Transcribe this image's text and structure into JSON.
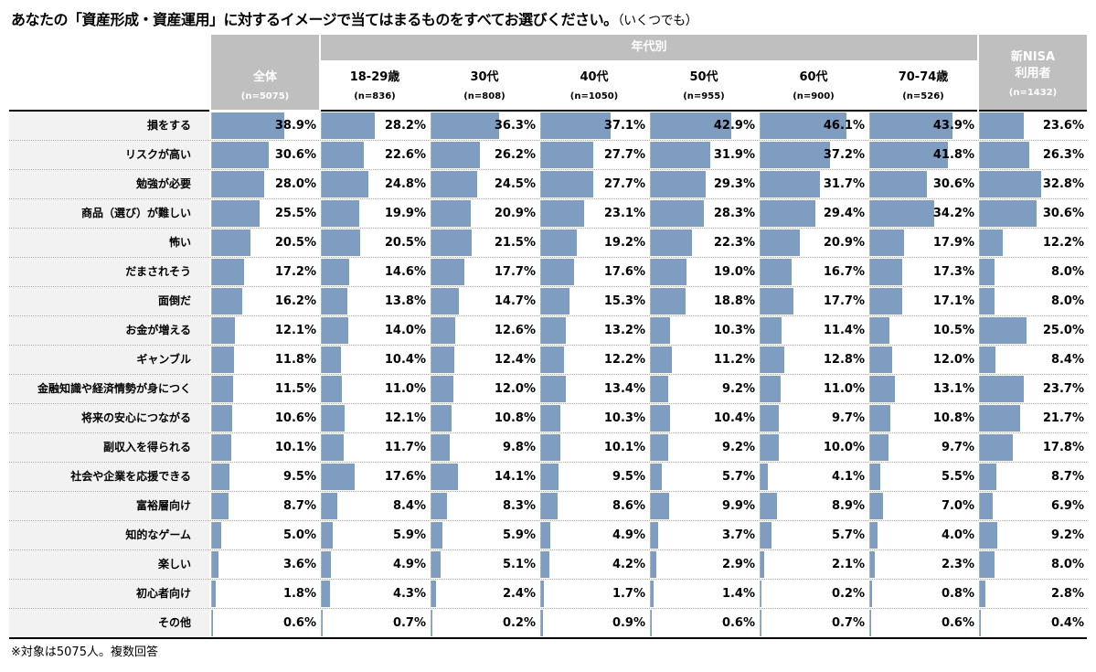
{
  "title": "あなたの「資産形成・資産運用」に対するイメージで当てはまるものをすべてお選びください。",
  "title_note": "（いくつでも）",
  "group_header": "年代別",
  "columns": [
    {
      "label": "全体",
      "n": "(n=5075)",
      "shaded": true
    },
    {
      "label": "18-29歳",
      "n": "(n=836)"
    },
    {
      "label": "30代",
      "n": "(n=808)"
    },
    {
      "label": "40代",
      "n": "(n=1050)"
    },
    {
      "label": "50代",
      "n": "(n=955)"
    },
    {
      "label": "60代",
      "n": "(n=900)"
    },
    {
      "label": "70-74歳",
      "n": "(n=526)"
    },
    {
      "label": "新NISA\n利用者",
      "n": "(n=1432)",
      "shaded": true
    }
  ],
  "colors": {
    "bar": "#7f9cc1",
    "header": "#bfbfbf",
    "label_bg": "#f2f2f2"
  },
  "chart_data": {
    "type": "table",
    "unit": "%",
    "rows": [
      {
        "label": "損をする",
        "values": [
          38.9,
          28.2,
          36.3,
          37.1,
          42.9,
          46.1,
          43.9,
          23.6
        ]
      },
      {
        "label": "リスクが高い",
        "values": [
          30.6,
          22.6,
          26.2,
          27.7,
          31.9,
          37.2,
          41.8,
          26.3
        ]
      },
      {
        "label": "勉強が必要",
        "values": [
          28.0,
          24.8,
          24.5,
          27.7,
          29.3,
          31.7,
          30.6,
          32.8
        ]
      },
      {
        "label": "商品（選び）が難しい",
        "values": [
          25.5,
          19.9,
          20.9,
          23.1,
          28.3,
          29.4,
          34.2,
          30.6
        ]
      },
      {
        "label": "怖い",
        "values": [
          20.5,
          20.5,
          21.5,
          19.2,
          22.3,
          20.9,
          17.9,
          12.2
        ]
      },
      {
        "label": "だまされそう",
        "values": [
          17.2,
          14.6,
          17.7,
          17.6,
          19.0,
          16.7,
          17.3,
          8.0
        ]
      },
      {
        "label": "面倒だ",
        "values": [
          16.2,
          13.8,
          14.7,
          15.3,
          18.8,
          17.7,
          17.1,
          8.0
        ]
      },
      {
        "label": "お金が増える",
        "values": [
          12.1,
          14.0,
          12.6,
          13.2,
          10.3,
          11.4,
          10.5,
          25.0
        ]
      },
      {
        "label": "ギャンブル",
        "values": [
          11.8,
          10.4,
          12.4,
          12.2,
          11.2,
          12.8,
          12.0,
          8.4
        ]
      },
      {
        "label": "金融知識や経済情勢が身につく",
        "values": [
          11.5,
          11.0,
          12.0,
          13.4,
          9.2,
          11.0,
          13.1,
          23.7
        ]
      },
      {
        "label": "将来の安心につながる",
        "values": [
          10.6,
          12.1,
          10.8,
          10.3,
          10.4,
          9.7,
          10.8,
          21.7
        ]
      },
      {
        "label": "副収入を得られる",
        "values": [
          10.1,
          11.7,
          9.8,
          10.1,
          9.2,
          10.0,
          9.7,
          17.8
        ]
      },
      {
        "label": "社会や企業を応援できる",
        "values": [
          9.5,
          17.6,
          14.1,
          9.5,
          5.7,
          4.1,
          5.5,
          8.7
        ]
      },
      {
        "label": "富裕層向け",
        "values": [
          8.7,
          8.4,
          8.3,
          8.6,
          9.9,
          8.9,
          7.0,
          6.9
        ]
      },
      {
        "label": "知的なゲーム",
        "values": [
          5.0,
          5.9,
          5.9,
          4.9,
          3.7,
          5.7,
          4.0,
          9.2
        ]
      },
      {
        "label": "楽しい",
        "values": [
          3.6,
          4.9,
          5.1,
          4.2,
          2.9,
          2.1,
          2.3,
          8.0
        ]
      },
      {
        "label": "初心者向け",
        "values": [
          1.8,
          4.3,
          2.4,
          1.7,
          1.4,
          0.2,
          0.8,
          2.8
        ]
      },
      {
        "label": "その他",
        "values": [
          0.6,
          0.7,
          0.2,
          0.9,
          0.6,
          0.7,
          0.6,
          0.4
        ]
      }
    ]
  },
  "footnote": "※対象は5075人。複数回答"
}
